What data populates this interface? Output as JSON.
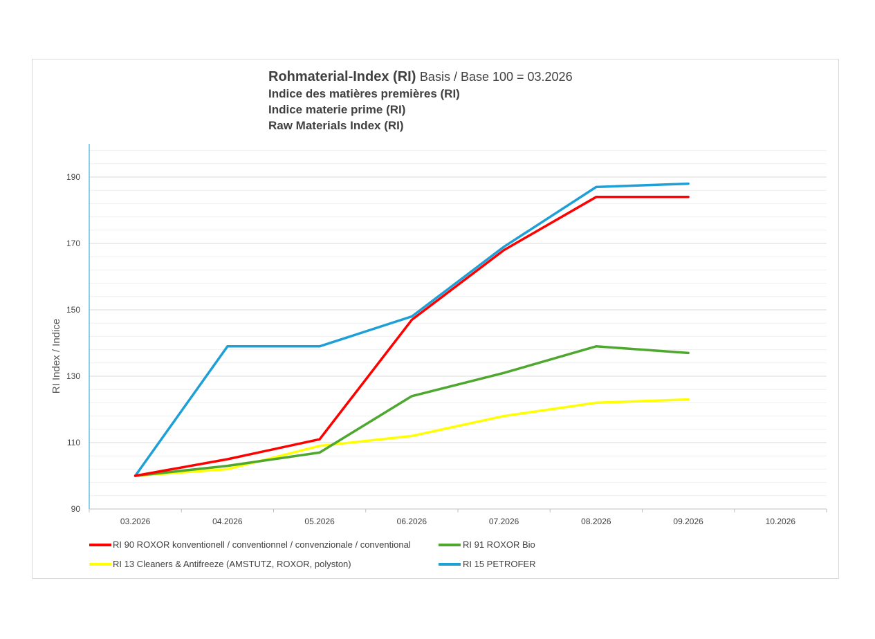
{
  "title": {
    "main": "Rohmaterial-Index (RI)",
    "base": "Basis / Base  100 = 03.2026",
    "fr": "Indice des matières premières (RI)",
    "it": "Indice materie prime (RI)",
    "en": "Raw Materials Index (RI)"
  },
  "chart_data": {
    "type": "line",
    "title": "Rohmaterial-Index (RI) Basis / Base  100 = 03.2026",
    "xlabel": "",
    "ylabel": "RI Index / Indice",
    "categories": [
      "03.2026",
      "04.2026",
      "05.2026",
      "06.2026",
      "07.2026",
      "08.2026",
      "09.2026",
      "10.2026"
    ],
    "ylim": [
      90,
      200
    ],
    "yticks": [
      90,
      110,
      130,
      150,
      170,
      190
    ],
    "grid": true,
    "legend_position": "bottom",
    "series": [
      {
        "name": "RI 90 ROXOR konventionell / conventionnel / convenzionale / conventional",
        "color": "#ff0000",
        "values": [
          100,
          105,
          111,
          147,
          168,
          184,
          184,
          null
        ]
      },
      {
        "name": "RI 91 ROXOR Bio",
        "color": "#4ea72e",
        "values": [
          100,
          103,
          107,
          124,
          131,
          139,
          137,
          null
        ]
      },
      {
        "name": "RI 13 Cleaners & Antifreeze (AMSTUTZ, ROXOR, polyston)",
        "color": "#ffff00",
        "values": [
          100,
          102,
          109,
          112,
          118,
          122,
          123,
          null
        ]
      },
      {
        "name": "RI 15 PETROFER",
        "color": "#1ea0d6",
        "values": [
          100,
          139,
          139,
          148,
          169,
          187,
          188,
          null
        ]
      }
    ]
  }
}
